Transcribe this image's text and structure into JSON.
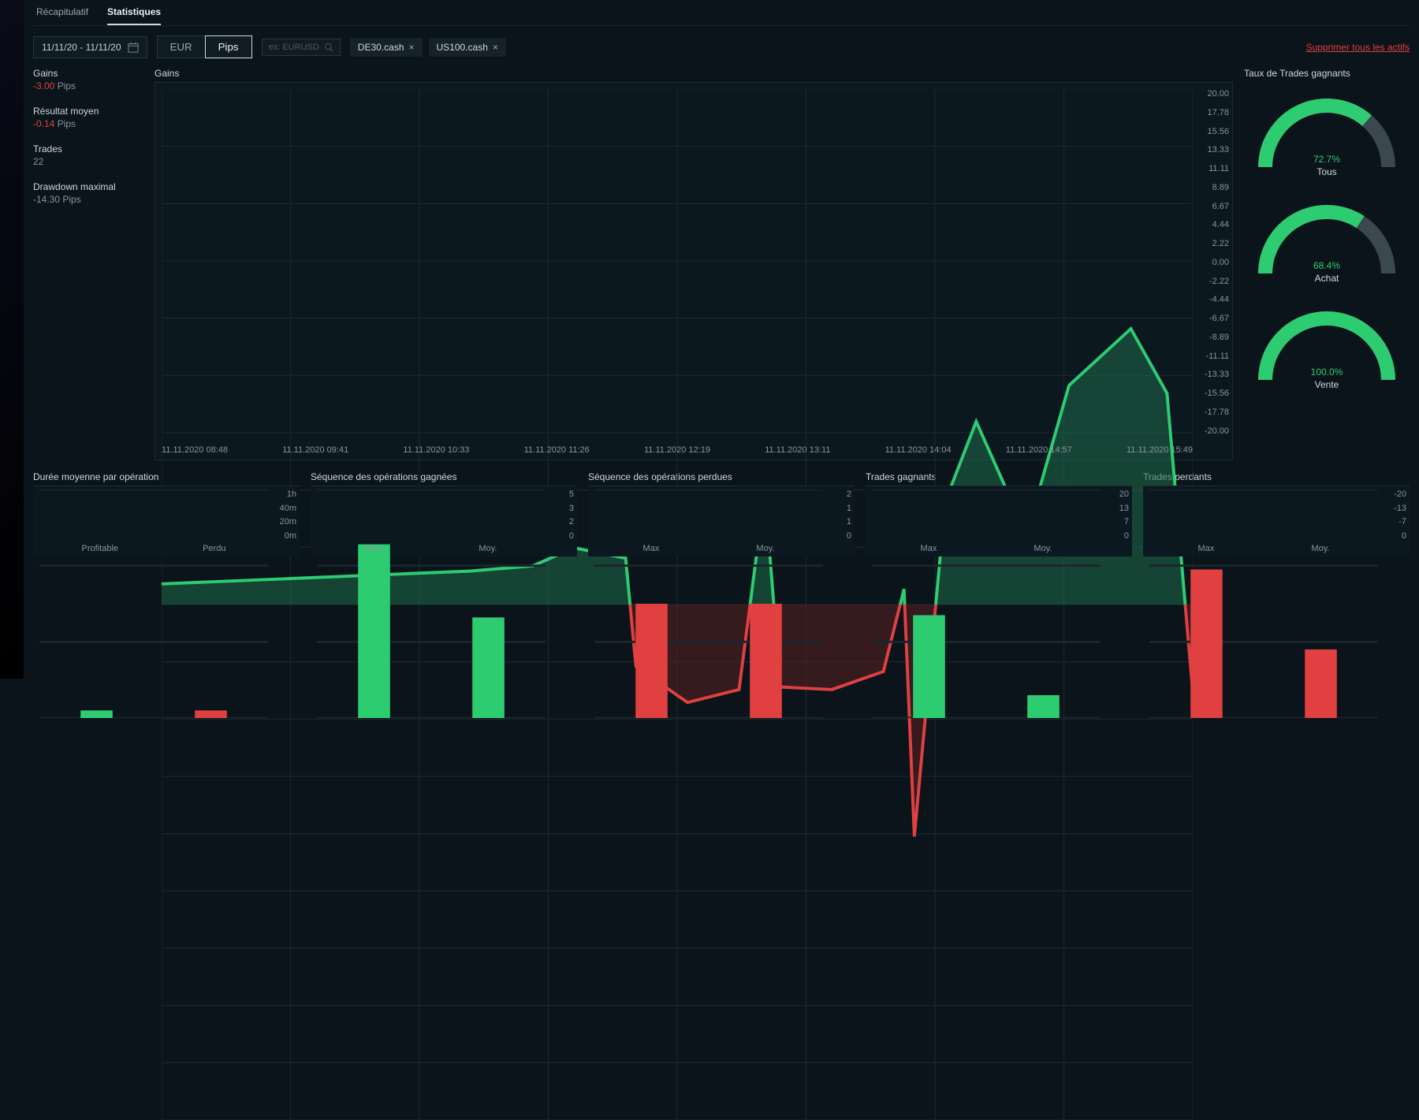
{
  "tabs": {
    "recap": "Récapitulatif",
    "stats": "Statistiques"
  },
  "toolbar": {
    "daterange": "11/11/20 - 11/11/20",
    "eur": "EUR",
    "pips": "Pips",
    "search_placeholder": "ex: EURUSD",
    "chips": [
      "DE30.cash",
      "US100.cash"
    ],
    "delete_all": "Supprimer tous les actifs"
  },
  "side_stats": {
    "gains_lbl": "Gains",
    "gains_val": "-3.00",
    "gains_unit": "Pips",
    "avg_lbl": "Résultat moyen",
    "avg_val": "-0.14",
    "avg_unit": "Pips",
    "trades_lbl": "Trades",
    "trades_val": "22",
    "dd_lbl": "Drawdown maximal",
    "dd_val": "-14.30",
    "dd_unit": "Pips"
  },
  "gains_chart": {
    "title": "Gains",
    "ylim": [
      -20,
      20
    ],
    "yticks": [
      "20.00",
      "17.78",
      "15.56",
      "13.33",
      "11.11",
      "8.89",
      "6.67",
      "4.44",
      "2.22",
      "0.00",
      "-2.22",
      "-4.44",
      "-6.67",
      "-8.89",
      "-11.11",
      "-13.33",
      "-15.56",
      "-17.78",
      "-20.00"
    ],
    "xticks": [
      "11.11.2020 08:48",
      "11.11.2020 09:41",
      "11.11.2020 10:33",
      "11.11.2020 11:26",
      "11.11.2020 12:19",
      "11.11.2020 13:11",
      "11.11.2020 14:04",
      "11.11.2020 14:57",
      "11.11.2020 15:49"
    ],
    "points": [
      {
        "x": 0.0,
        "y": 0.8
      },
      {
        "x": 0.06,
        "y": 0.9
      },
      {
        "x": 0.12,
        "y": 1.0
      },
      {
        "x": 0.18,
        "y": 1.1
      },
      {
        "x": 0.24,
        "y": 1.2
      },
      {
        "x": 0.3,
        "y": 1.3
      },
      {
        "x": 0.36,
        "y": 1.5
      },
      {
        "x": 0.4,
        "y": 2.2
      },
      {
        "x": 0.45,
        "y": 1.8
      },
      {
        "x": 0.46,
        "y": -2.4
      },
      {
        "x": 0.51,
        "y": -3.8
      },
      {
        "x": 0.56,
        "y": -3.3
      },
      {
        "x": 0.585,
        "y": 4.4
      },
      {
        "x": 0.6,
        "y": -3.2
      },
      {
        "x": 0.65,
        "y": -3.3
      },
      {
        "x": 0.7,
        "y": -2.6
      },
      {
        "x": 0.72,
        "y": 0.6
      },
      {
        "x": 0.73,
        "y": -9.0
      },
      {
        "x": 0.76,
        "y": 4.0
      },
      {
        "x": 0.79,
        "y": 7.1
      },
      {
        "x": 0.82,
        "y": 4.4
      },
      {
        "x": 0.85,
        "y": 4.3
      },
      {
        "x": 0.88,
        "y": 8.5
      },
      {
        "x": 0.94,
        "y": 10.7
      },
      {
        "x": 0.975,
        "y": 8.2
      },
      {
        "x": 1.0,
        "y": -3.4
      }
    ],
    "pos_color": "#1f6b4a",
    "pos_stroke": "#2ecc71",
    "neg_color": "#5a1f22",
    "neg_stroke": "#e04040",
    "grid_color": "#1a262e",
    "bg": "#0c1820"
  },
  "win_rate": {
    "title": "Taux de Trades gagnants",
    "gauges": [
      {
        "pct": 72.7,
        "pct_label": "72.7%",
        "label": "Tous"
      },
      {
        "pct": 68.4,
        "pct_label": "68.4%",
        "label": "Achat"
      },
      {
        "pct": 100.0,
        "pct_label": "100.0%",
        "label": "Vente"
      }
    ],
    "fill_color": "#2ecc71",
    "track_color": "#3a4850"
  },
  "bottom_panels": [
    {
      "title": "Durée moyenne par opération",
      "ylabels": [
        "1h",
        "40m",
        "20m",
        "0m"
      ],
      "ymax": 60,
      "bars": [
        {
          "label": "Profitable",
          "value": 2,
          "color": "#2ecc71"
        },
        {
          "label": "Perdu",
          "value": 2,
          "color": "#e04040"
        }
      ]
    },
    {
      "title": "Séquence des opérations gagnées",
      "ylabels": [
        "5",
        "3",
        "2",
        "0"
      ],
      "ymax": 5,
      "bars": [
        {
          "label": "Max",
          "value": 3.8,
          "color": "#2ecc71"
        },
        {
          "label": "Moy.",
          "value": 2.2,
          "color": "#2ecc71"
        }
      ]
    },
    {
      "title": "Séquence des opérations perdues",
      "ylabels": [
        "2",
        "1",
        "1",
        "0"
      ],
      "ymax": 2,
      "bars": [
        {
          "label": "Max",
          "value": 1,
          "color": "#e04040"
        },
        {
          "label": "Moy.",
          "value": 1,
          "color": "#e04040"
        }
      ]
    },
    {
      "title": "Trades gagnants",
      "ylabels": [
        "20",
        "13",
        "7",
        "0"
      ],
      "ymax": 20,
      "bars": [
        {
          "label": "Max",
          "value": 9,
          "color": "#2ecc71"
        },
        {
          "label": "Moy.",
          "value": 2,
          "color": "#2ecc71"
        }
      ]
    },
    {
      "title": "Trades perdants",
      "ylabels": [
        "-20",
        "-13",
        "-7",
        "0"
      ],
      "ymax": 20,
      "bars": [
        {
          "label": "Max",
          "value": 13,
          "color": "#e04040"
        },
        {
          "label": "Moy.",
          "value": 6,
          "color": "#e04040"
        }
      ]
    }
  ]
}
